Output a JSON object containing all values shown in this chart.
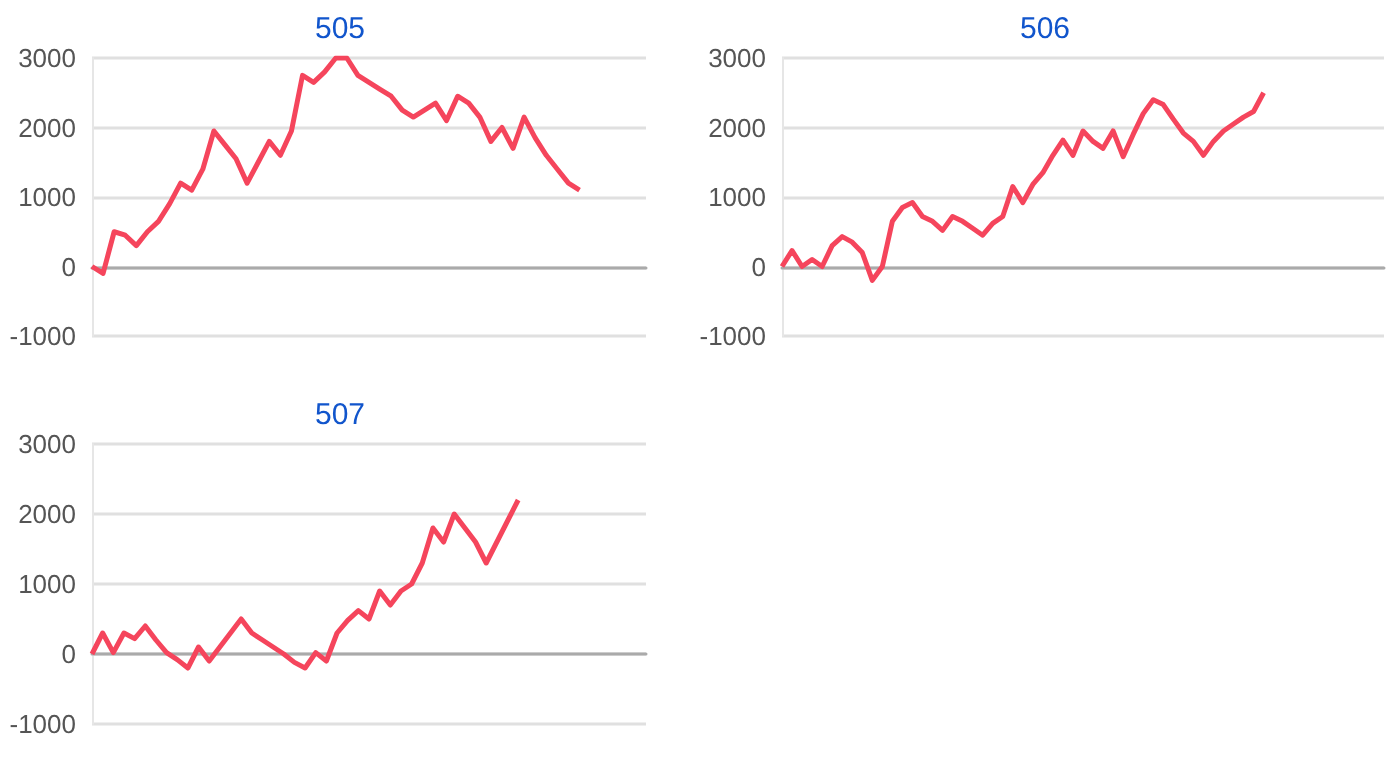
{
  "chart_data": [
    {
      "type": "line",
      "title": "505",
      "categories": [
        null,
        null,
        null,
        null,
        null,
        null,
        null,
        null,
        null,
        null,
        null,
        null,
        null,
        null,
        null,
        null,
        null,
        null,
        null,
        null,
        null,
        null,
        null,
        null,
        null,
        null,
        null,
        null,
        null,
        null,
        null,
        null,
        null,
        null,
        null,
        null,
        null,
        null,
        null,
        null,
        null,
        null,
        null,
        null,
        null,
        null,
        null,
        null,
        null,
        null,
        null
      ],
      "series": [
        {
          "color": "#f5455c",
          "values": [
            0,
            -100,
            500,
            450,
            300,
            500,
            650,
            900,
            1200,
            1100,
            1400,
            1950,
            1750,
            1550,
            1200,
            1500,
            1800,
            1600,
            1950,
            2750,
            2650,
            2800,
            3000,
            3000,
            2750,
            2650,
            2550,
            2450,
            2250,
            2150,
            2250,
            2350,
            2100,
            2450,
            2350,
            2150,
            1800,
            2000,
            1700,
            2150,
            1850,
            1600,
            1400,
            1200,
            1100,
            null,
            null,
            null,
            null,
            null,
            null
          ]
        }
      ],
      "ylim": [
        -1000,
        3000
      ],
      "yticks": [
        -1000,
        0,
        1000,
        2000,
        3000
      ],
      "grid": "y",
      "tick_labels": "y",
      "line_style": "solid"
    },
    {
      "type": "line",
      "title": "506",
      "categories": [
        null,
        null,
        null,
        null,
        null,
        null,
        null,
        null,
        null,
        null,
        null,
        null,
        null,
        null,
        null,
        null,
        null,
        null,
        null,
        null,
        null,
        null,
        null,
        null,
        null,
        null,
        null,
        null,
        null,
        null,
        null,
        null,
        null,
        null,
        null,
        null,
        null,
        null,
        null,
        null,
        null,
        null,
        null,
        null,
        null,
        null,
        null,
        null,
        null,
        null,
        null,
        null,
        null,
        null,
        null,
        null,
        null,
        null,
        null,
        null,
        null
      ],
      "series": [
        {
          "color": "#f5455c",
          "values": [
            0,
            230,
            0,
            100,
            0,
            300,
            430,
            350,
            200,
            -200,
            0,
            650,
            850,
            920,
            720,
            650,
            520,
            720,
            650,
            550,
            450,
            620,
            720,
            1150,
            920,
            1180,
            1350,
            1600,
            1820,
            1600,
            1950,
            1800,
            1700,
            1950,
            1580,
            1900,
            2200,
            2400,
            2330,
            2120,
            1920,
            1800,
            1600,
            1800,
            1950,
            2050,
            2150,
            2230,
            2500,
            null,
            null,
            null,
            null,
            null,
            null,
            null,
            null,
            null,
            null,
            null,
            null
          ]
        }
      ],
      "ylim": [
        -1000,
        3000
      ],
      "yticks": [
        -1000,
        0,
        1000,
        2000,
        3000
      ],
      "grid": "y",
      "tick_labels": "y",
      "line_style": "solid"
    },
    {
      "type": "line",
      "title": "507",
      "categories": [
        null,
        null,
        null,
        null,
        null,
        null,
        null,
        null,
        null,
        null,
        null,
        null,
        null,
        null,
        null,
        null,
        null,
        null,
        null,
        null,
        null,
        null,
        null,
        null,
        null,
        null,
        null,
        null,
        null,
        null,
        null,
        null,
        null,
        null,
        null,
        null,
        null,
        null,
        null,
        null,
        null,
        null,
        null,
        null,
        null,
        null,
        null,
        null,
        null,
        null,
        null,
        null,
        null
      ],
      "series": [
        {
          "color": "#f5455c",
          "values": [
            0,
            300,
            20,
            300,
            220,
            400,
            200,
            20,
            -80,
            -200,
            100,
            -100,
            100,
            300,
            500,
            300,
            200,
            100,
            0,
            -120,
            -200,
            20,
            -100,
            300,
            480,
            620,
            500,
            900,
            700,
            900,
            1000,
            1300,
            1800,
            1600,
            2000,
            1800,
            1600,
            1300,
            1600,
            1900,
            2200,
            null,
            null,
            null,
            null,
            null,
            null,
            null,
            null,
            null,
            null,
            null,
            null
          ]
        }
      ],
      "ylim": [
        -1000,
        3000
      ],
      "yticks": [
        -1000,
        0,
        1000,
        2000,
        3000
      ],
      "grid": "y",
      "tick_labels": "y",
      "line_style": "solid"
    }
  ]
}
